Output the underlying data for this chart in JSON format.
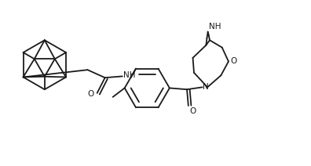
{
  "background_color": "#ffffff",
  "line_color": "#1a1a1a",
  "line_width": 1.3,
  "font_size": 7.5,
  "figsize": [
    3.96,
    2.12
  ],
  "dpi": 100,
  "xlim": [
    0,
    11
  ],
  "ylim": [
    0,
    5.8
  ]
}
